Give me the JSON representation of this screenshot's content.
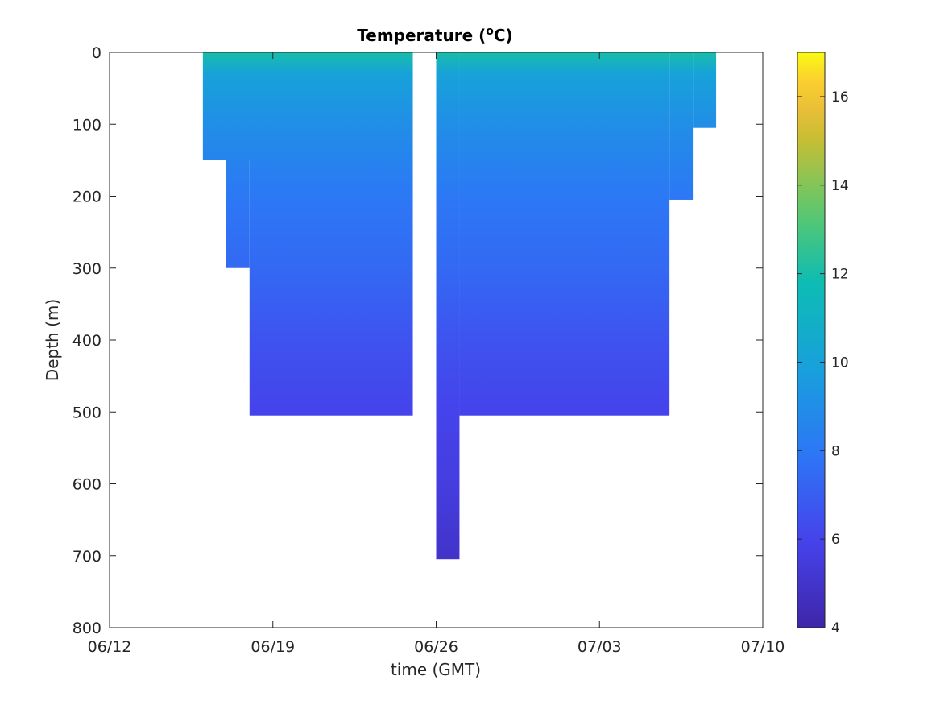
{
  "chart_data": {
    "type": "heatmap",
    "title": "Temperature (°C)",
    "title_main": "Temperature (",
    "title_sup": "o",
    "title_end": "C)",
    "xlabel": "time (GMT)",
    "ylabel": "Depth (m)",
    "x_ticks": [
      "06/12",
      "06/19",
      "06/26",
      "07/03",
      "07/10"
    ],
    "x_range_days_labels": [
      "06/12",
      "07/10"
    ],
    "y_ticks": [
      0,
      100,
      200,
      300,
      400,
      500,
      600,
      700,
      800
    ],
    "ylim": [
      0,
      800
    ],
    "y_reversed": true,
    "colorbar": {
      "ticks": [
        4,
        6,
        8,
        10,
        12,
        14,
        16
      ],
      "range": [
        4,
        17
      ],
      "colormap": "parula"
    },
    "segments": [
      {
        "start": "06/16",
        "end": "06/19",
        "max_depth": 150
      },
      {
        "start": "06/17",
        "end": "06/18",
        "max_depth": 300
      },
      {
        "start": "06/18",
        "end": "06/25",
        "max_depth": 505
      },
      {
        "start": "06/26",
        "end": "06/27",
        "max_depth": 705
      },
      {
        "start": "06/27",
        "end": "07/06",
        "max_depth": 505
      },
      {
        "start": "07/06",
        "end": "07/07",
        "max_depth": 205
      },
      {
        "start": "07/07",
        "end": "07/08",
        "max_depth": 105
      }
    ],
    "temperature_profile": [
      {
        "depth": 0,
        "temp": 12.0
      },
      {
        "depth": 30,
        "temp": 10.0
      },
      {
        "depth": 100,
        "temp": 9.0
      },
      {
        "depth": 200,
        "temp": 8.0
      },
      {
        "depth": 300,
        "temp": 7.4
      },
      {
        "depth": 400,
        "temp": 6.6
      },
      {
        "depth": 500,
        "temp": 6.0
      },
      {
        "depth": 600,
        "temp": 5.6
      },
      {
        "depth": 700,
        "temp": 5.0
      }
    ],
    "grid": false,
    "legend": "colorbar-right"
  }
}
